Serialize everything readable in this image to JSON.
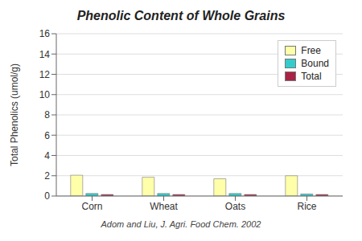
{
  "chart_data": {
    "type": "bar",
    "title": "Phenolic Content of Whole Grains",
    "subtitle": "Adom and Liu, J. Agri. Food Chem. 2002",
    "ylabel": "Total Phenolics (umol/g)",
    "categories": [
      "Corn",
      "Wheat",
      "Oats",
      "Rice"
    ],
    "series": [
      {
        "name": "Free",
        "color": "#ffffaa",
        "values": [
          2.05,
          1.85,
          1.7,
          2.0
        ]
      },
      {
        "name": "Bound",
        "color": "#33cccc",
        "values": [
          0.25,
          0.25,
          0.25,
          0.2
        ]
      },
      {
        "name": "Total",
        "color": "#aa2244",
        "values": [
          0.15,
          0.15,
          0.15,
          0.15
        ]
      }
    ],
    "ylim": [
      0,
      16
    ],
    "yticks": [
      0,
      2,
      4,
      6,
      8,
      10,
      12,
      14,
      16
    ],
    "grid": true,
    "legend": "upper right"
  }
}
